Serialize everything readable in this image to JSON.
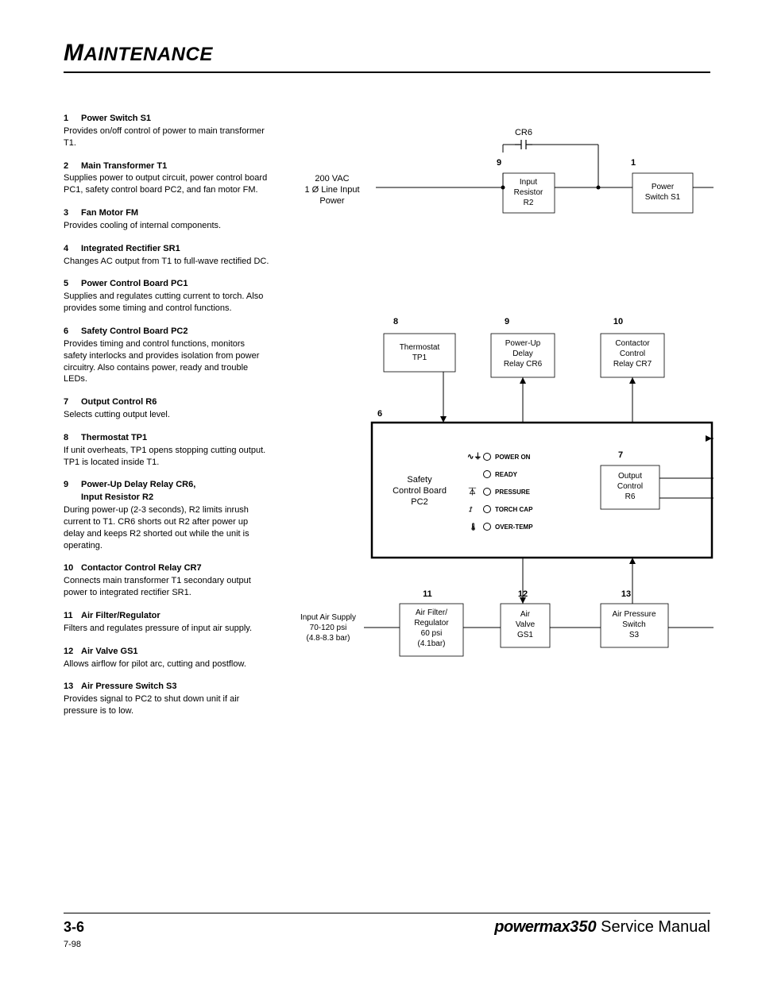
{
  "header": {
    "title": "MAINTENANCE"
  },
  "items": [
    {
      "n": "1",
      "title": "Power Switch S1",
      "body": "Provides on/off control of power to main transformer T1."
    },
    {
      "n": "2",
      "title": "Main Transformer T1",
      "body": "Supplies power to output circuit, power control board PC1, safety control board PC2, and fan motor FM."
    },
    {
      "n": "3",
      "title": "Fan Motor FM",
      "body": "Provides cooling of internal components."
    },
    {
      "n": "4",
      "title": "Integrated Rectifier SR1",
      "body": "Changes AC output from T1 to full-wave rectified DC."
    },
    {
      "n": "5",
      "title": "Power Control Board PC1",
      "body": "Supplies and regulates cutting current to torch. Also provides some timing and control functions."
    },
    {
      "n": "6",
      "title": "Safety Control Board PC2",
      "body": "Provides timing and control functions, monitors safety interlocks and provides isolation from power circuitry. Also contains power, ready and trouble LEDs."
    },
    {
      "n": "7",
      "title": "Output Control R6",
      "body": "Selects cutting output level."
    },
    {
      "n": "8",
      "title": "Thermostat TP1",
      "body": "If unit overheats, TP1 opens stopping cutting output. TP1 is located inside T1."
    },
    {
      "n": "9",
      "title": "Power-Up Delay Relay CR6,",
      "title2": "Input Resistor R2",
      "body": "During power-up (2-3 seconds), R2 limits inrush current to T1.  CR6 shorts out R2 after power up delay and keeps R2 shorted out while the unit is operating."
    },
    {
      "n": "10",
      "title": "Contactor Control Relay CR7",
      "body": "Connects main transformer T1 secondary output power to integrated rectifier SR1."
    },
    {
      "n": "11",
      "title": "Air Filter/Regulator",
      "body": "Filters and regulates pressure of input air supply."
    },
    {
      "n": "12",
      "title": "Air Valve GS1",
      "body": "Allows airflow for pilot arc, cutting and postflow."
    },
    {
      "n": "13",
      "title": "Air Pressure Switch S3",
      "body": "Provides signal to PC2 to shut down unit if air pressure is to low."
    }
  ],
  "diagram": {
    "power_in": {
      "l1": "200 VAC",
      "l2": "1 Ø Line Input",
      "l3": "Power"
    },
    "cr6_label": "CR6",
    "nums": {
      "b1": "1",
      "b6": "6",
      "b7": "7",
      "b8": "8",
      "b9": "9",
      "b9top": "9",
      "b10": "10",
      "b11": "11",
      "b12": "12",
      "b13": "13"
    },
    "boxes": {
      "input_resistor": {
        "l1": "Input",
        "l2": "Resistor",
        "l3": "R2"
      },
      "power_switch": {
        "l1": "Power",
        "l2": "Switch S1"
      },
      "thermostat": {
        "l1": "Thermostat",
        "l2": "TP1"
      },
      "pudr": {
        "l1": "Power-Up",
        "l2": "Delay",
        "l3": "Relay CR6"
      },
      "ccr": {
        "l1": "Contactor",
        "l2": "Control",
        "l3": "Relay CR7"
      },
      "scb": {
        "l1": "Safety",
        "l2": "Control Board",
        "l3": "PC2"
      },
      "out_ctrl": {
        "l1": "Output",
        "l2": "Control",
        "l3": "R6"
      },
      "air_filter": {
        "l1": "Air Filter/",
        "l2": "Regulator",
        "l3": "60 psi",
        "l4": "(4.1bar)"
      },
      "air_valve": {
        "l1": "Air",
        "l2": "Valve",
        "l3": "GS1"
      },
      "air_press": {
        "l1": "Air Pressure",
        "l2": "Switch",
        "l3": "S3"
      }
    },
    "leds": {
      "a": "POWER ON",
      "b": "READY",
      "c": "PRESSURE",
      "d": "TORCH CAP",
      "e": "OVER-TEMP"
    },
    "air_in": {
      "l1": "Input Air Supply",
      "l2": "70-120 psi",
      "l3": "(4.8-8.3 bar)"
    }
  },
  "footer": {
    "page": "3-6",
    "brand1": "powermax",
    "brand2": "350",
    "label": " Service Manual",
    "date": "7-98"
  }
}
